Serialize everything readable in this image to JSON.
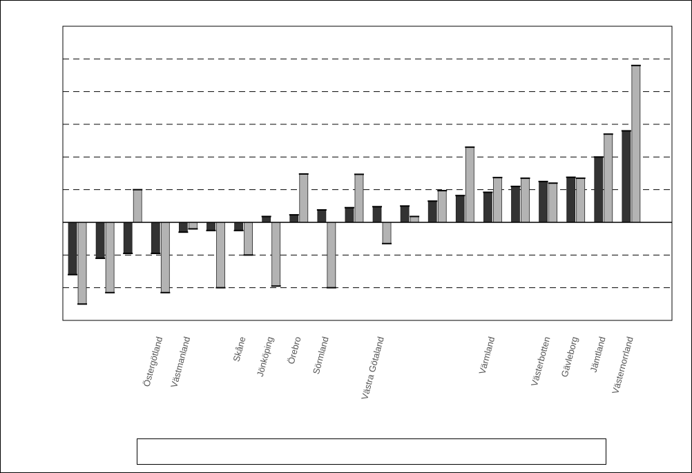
{
  "chart_data": {
    "type": "bar",
    "title": "",
    "xlabel": "",
    "ylabel": "",
    "ylim": [
      -3,
      6
    ],
    "y_gridlines": [
      -3,
      -2,
      -1,
      0,
      1,
      2,
      3,
      4,
      5,
      6
    ],
    "grid": "horizontal dashed",
    "legend": "bottom (entries not legible)",
    "categories": [
      "",
      "",
      "",
      "Östergötland",
      "Västmanland",
      "",
      "Skåne",
      "Jönköping",
      "Örebro",
      "Sörmland",
      "",
      "Västra Götaland",
      "",
      "",
      "",
      "Värmland",
      "",
      "Västerbotten",
      "Gävleborg",
      "Jämtland",
      "Västernorrland",
      ""
    ],
    "series": [
      {
        "color": "#333333",
        "values": [
          -1.6,
          -1.1,
          -0.95,
          -0.95,
          -0.3,
          -0.25,
          -0.25,
          0.18,
          0.23,
          0.38,
          0.45,
          0.48,
          0.5,
          0.65,
          0.82,
          0.92,
          1.1,
          1.25,
          1.38,
          2.0,
          2.8,
          0
        ]
      },
      {
        "color": "#b3b3b3",
        "values": [
          -2.5,
          -2.15,
          1.0,
          -2.15,
          -0.2,
          -2.0,
          -1.0,
          -1.95,
          1.48,
          -2.0,
          1.47,
          -0.65,
          0.18,
          0.97,
          2.3,
          1.37,
          1.35,
          1.2,
          1.35,
          2.7,
          4.8,
          0
        ]
      }
    ]
  }
}
